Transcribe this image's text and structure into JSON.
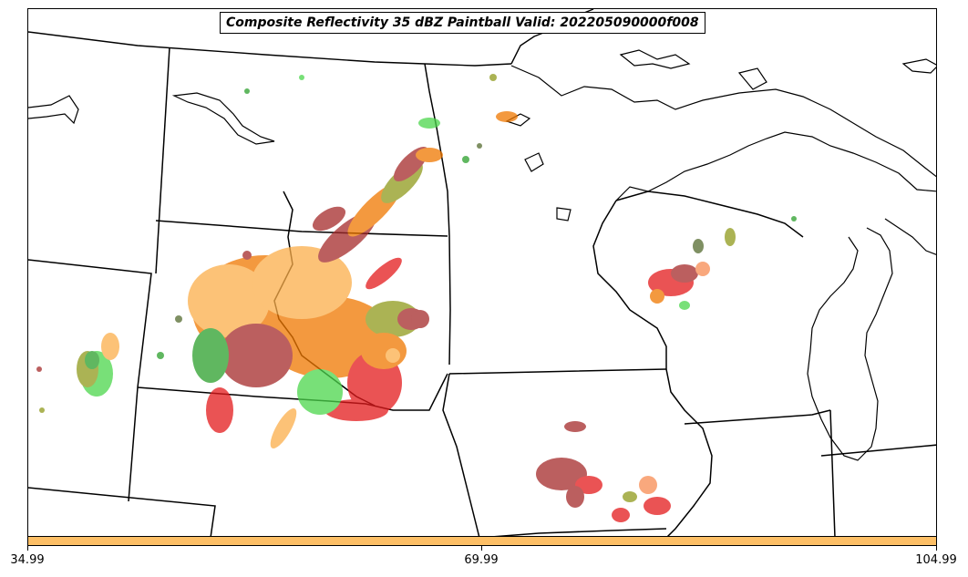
{
  "title": "Composite Reflectivity 35 dBZ Paintball Valid: 202205090000f008",
  "colorbar": {
    "color": "#fdbf66",
    "ticks": [
      "34.99",
      "69.99",
      "104.99"
    ]
  },
  "paintball_colors": {
    "orange": "#f07800",
    "light_orange": "#fbae4a",
    "red": "#e41a1c",
    "dark_red": "#a52a2a",
    "green": "#2ca02c",
    "light_green": "#4cd64c",
    "olive": "#8f9a1c",
    "dark_olive": "#556b2f",
    "salmon": "#f88c52",
    "dark_gray": "#3a3a3a"
  }
}
